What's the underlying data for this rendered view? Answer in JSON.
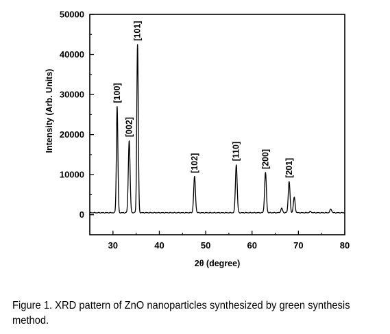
{
  "chart_data": {
    "type": "line",
    "xlabel": "2θ (degree)",
    "ylabel": "Intensity (Arb. Units)",
    "xlim": [
      25,
      80
    ],
    "ylim": [
      -5000,
      50000
    ],
    "xticks": [
      30,
      40,
      50,
      60,
      70,
      80
    ],
    "yticks": [
      0,
      10000,
      20000,
      30000,
      40000,
      50000
    ],
    "grid": false,
    "baseline": 500,
    "series": [
      {
        "peaks": [
          {
            "x": 30.9,
            "y": 27000
          },
          {
            "x": 33.5,
            "y": 18500
          },
          {
            "x": 35.3,
            "y": 42500
          },
          {
            "x": 47.6,
            "y": 9500
          },
          {
            "x": 56.6,
            "y": 12500
          },
          {
            "x": 62.9,
            "y": 10500
          },
          {
            "x": 66.4,
            "y": 1600
          },
          {
            "x": 68.0,
            "y": 8300
          },
          {
            "x": 69.1,
            "y": 4300
          },
          {
            "x": 72.6,
            "y": 800
          },
          {
            "x": 77.0,
            "y": 1400
          }
        ]
      }
    ],
    "annotations": [
      {
        "text": "[100]",
        "x": 30.9,
        "y": 27200
      },
      {
        "text": "[002]",
        "x": 33.5,
        "y": 18700
      },
      {
        "text": "[101]",
        "x": 35.3,
        "y": 42700
      },
      {
        "text": "[102]",
        "x": 47.6,
        "y": 9700
      },
      {
        "text": "[110]",
        "x": 56.6,
        "y": 12700
      },
      {
        "text": "[200]",
        "x": 62.9,
        "y": 10700
      },
      {
        "text": "[201]",
        "x": 68.0,
        "y": 8500
      }
    ]
  },
  "caption": {
    "label": "Figure 1.",
    "text": " XRD pattern of ZnO nanoparticles synthesized by green synthesis method."
  }
}
